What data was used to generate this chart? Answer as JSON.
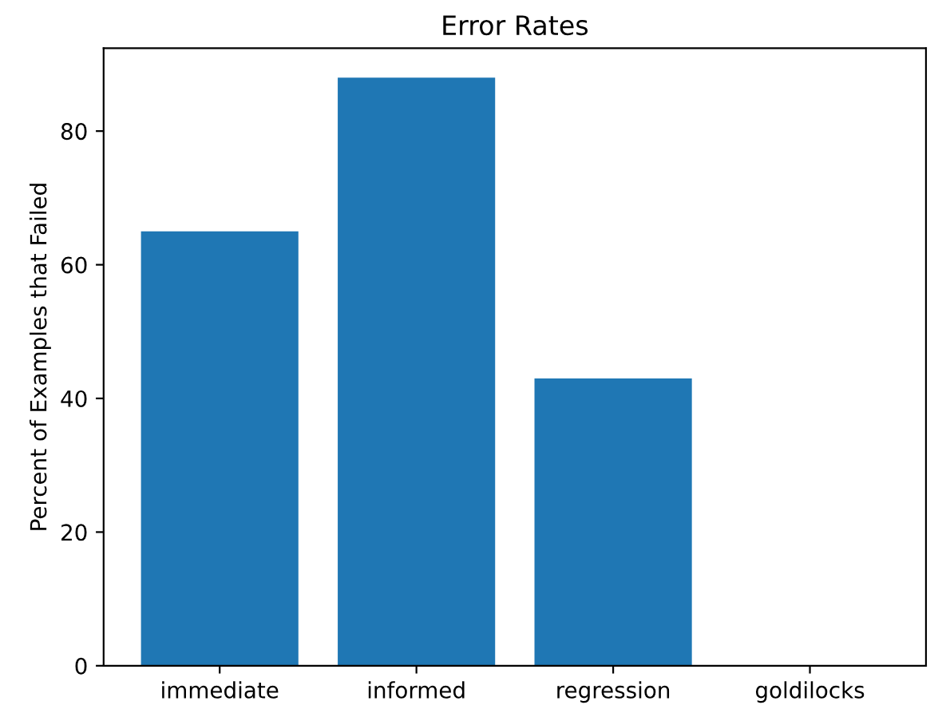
{
  "chart_data": {
    "type": "bar",
    "title": "Error Rates",
    "ylabel": "Percent of Examples that Failed",
    "categories": [
      "immediate",
      "informed",
      "regression",
      "goldilocks"
    ],
    "values": [
      65,
      88,
      43,
      0
    ],
    "color": "#1f77b4",
    "ylim": [
      0,
      92.4
    ],
    "yticks": [
      0,
      20,
      40,
      60,
      80
    ],
    "grid": false,
    "legend": false
  }
}
